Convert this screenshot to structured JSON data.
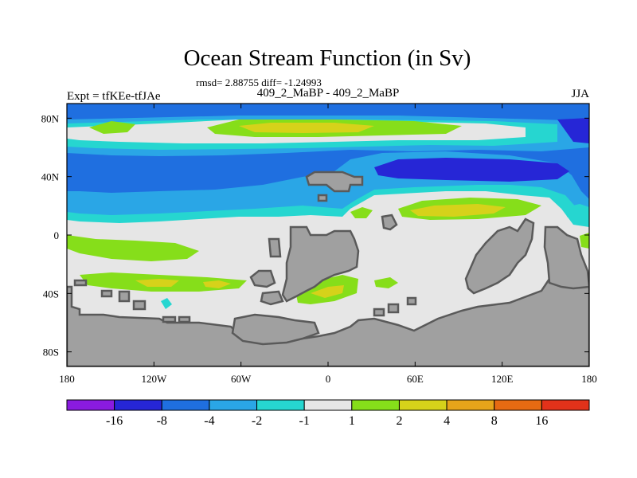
{
  "title": "Ocean Stream Function (in Sv)",
  "stats": "rmsd= 2.88755 diff= -1.24993",
  "left_label": "Expt = tfKEe-tfJAe",
  "center_label": "409_2_MaBP - 409_2_MaBP",
  "right_label": "JJA",
  "chart_data": {
    "type": "heatmap",
    "x_ticks": [
      "180",
      "120W",
      "60W",
      "0",
      "60E",
      "120E",
      "180"
    ],
    "y_ticks": [
      "80N",
      "40N",
      "0",
      "40S",
      "80S"
    ],
    "xlim": [
      -180,
      180
    ],
    "ylim": [
      -90,
      90
    ],
    "grid": false,
    "colorbar": {
      "levels": [
        "-16",
        "-8",
        "-4",
        "-2",
        "-1",
        "1",
        "2",
        "4",
        "8",
        "16"
      ],
      "colors": [
        "#8a1be0",
        "#2626d6",
        "#1f6fe0",
        "#2aa6e6",
        "#26d6d0",
        "#e6e6e6",
        "#86de1a",
        "#d6d21a",
        "#e6a41a",
        "#e66a12",
        "#e2321a"
      ]
    }
  },
  "colors": {
    "land": "#a0a0a0",
    "land_edge": "#5a5a5a",
    "border": "#000000"
  }
}
